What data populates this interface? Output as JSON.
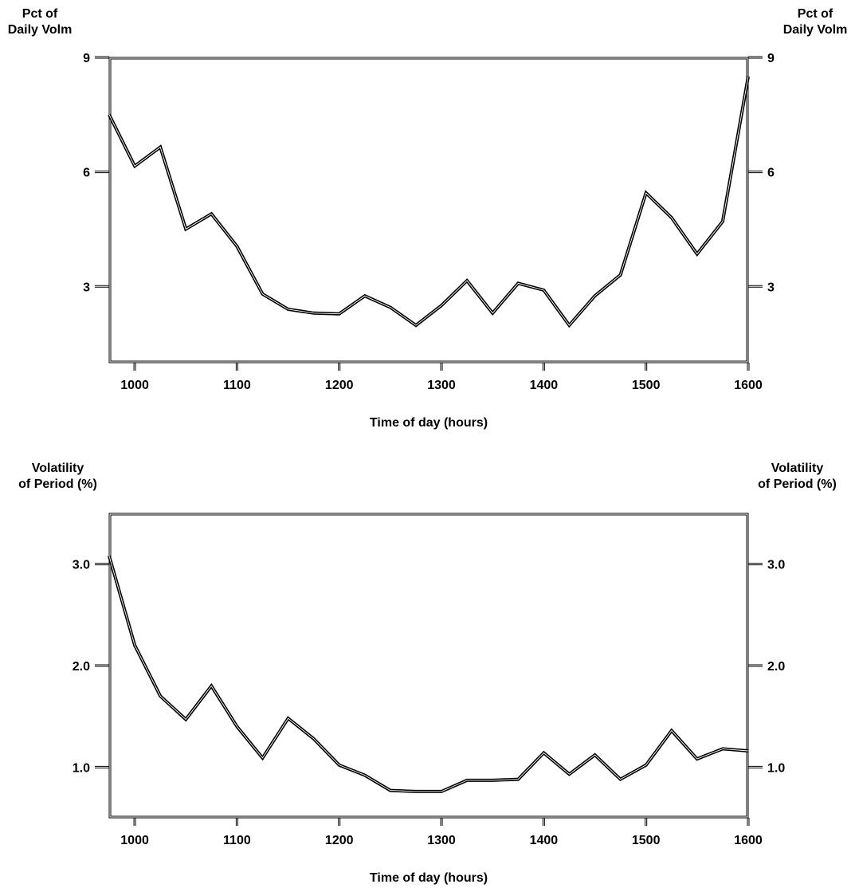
{
  "chart_data": [
    {
      "type": "line",
      "ylabel_left": "Pct of\nDaily Volm",
      "ylabel_right": "Pct of\nDaily Volm",
      "xlabel": "Time of day (hours)",
      "xlim": [
        945,
        1600
      ],
      "ylim": [
        1.0,
        9.0
      ],
      "x_ticks": [
        "1000",
        "1100",
        "1200",
        "1300",
        "1400",
        "1500",
        "1600"
      ],
      "y_ticks": [
        "3",
        "6",
        "9"
      ],
      "grid": false,
      "series": [
        {
          "x": [
            "0945",
            "1000",
            "1015",
            "1030",
            "1045",
            "1100",
            "1115",
            "1130",
            "1145",
            "1200",
            "1215",
            "1230",
            "1245",
            "1300",
            "1315",
            "1330",
            "1345",
            "1400",
            "1415",
            "1430",
            "1445",
            "1500",
            "1515",
            "1530",
            "1545",
            "1600"
          ],
          "y": [
            7.5,
            6.15,
            6.65,
            4.5,
            4.9,
            4.05,
            2.8,
            2.4,
            2.3,
            2.28,
            2.75,
            2.45,
            1.98,
            2.5,
            3.15,
            2.3,
            3.08,
            2.9,
            1.98,
            2.75,
            3.3,
            5.45,
            4.8,
            3.85,
            4.7,
            8.5
          ]
        }
      ]
    },
    {
      "type": "line",
      "ylabel_left": "Volatility\nof Period (%)",
      "ylabel_right": "Volatility\nof Period (%)",
      "xlabel": "Time of day (hours)",
      "xlim": [
        945,
        1600
      ],
      "ylim": [
        0.5,
        3.5
      ],
      "x_ticks": [
        "1000",
        "1100",
        "1200",
        "1300",
        "1400",
        "1500",
        "1600"
      ],
      "y_ticks": [
        "1.0",
        "2.0",
        "3.0"
      ],
      "grid": false,
      "series": [
        {
          "x": [
            "0945",
            "1000",
            "1015",
            "1030",
            "1045",
            "1100",
            "1115",
            "1130",
            "1145",
            "1200",
            "1215",
            "1230",
            "1245",
            "1300",
            "1315",
            "1330",
            "1345",
            "1400",
            "1415",
            "1430",
            "1445",
            "1500",
            "1515",
            "1530",
            "1545",
            "1600"
          ],
          "y": [
            3.08,
            2.2,
            1.7,
            1.47,
            1.8,
            1.4,
            1.09,
            1.48,
            1.28,
            1.02,
            0.92,
            0.77,
            0.76,
            0.76,
            0.87,
            0.87,
            0.88,
            1.14,
            0.93,
            1.12,
            0.88,
            1.02,
            1.36,
            1.08,
            1.18,
            1.16
          ]
        }
      ]
    }
  ]
}
